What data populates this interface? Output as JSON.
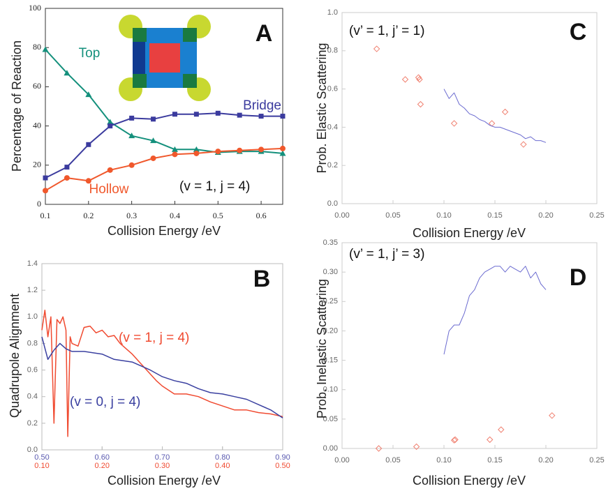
{
  "chart_data": [
    {
      "type": "line",
      "panel": "A",
      "xlabel": "Collision Energy /eV",
      "ylabel": "Percentage of Reaction",
      "annotations": [
        "(v = 1, j = 4)"
      ],
      "xlim": [
        0.1,
        0.65
      ],
      "xticks": [
        0.1,
        0.2,
        0.3,
        0.4,
        0.5,
        0.6
      ],
      "ylim": [
        0,
        100
      ],
      "yticks": [
        0,
        20,
        40,
        60,
        80,
        100
      ],
      "x": [
        0.1,
        0.15,
        0.2,
        0.25,
        0.3,
        0.35,
        0.4,
        0.45,
        0.5,
        0.55,
        0.6,
        0.65
      ],
      "series": [
        {
          "name": "Top",
          "color": "#14907c",
          "marker": "triangle",
          "values": [
            79,
            67,
            56,
            42,
            35,
            32.5,
            28,
            28,
            26.5,
            27,
            27,
            26
          ]
        },
        {
          "name": "Bridge",
          "color": "#3b3b9e",
          "marker": "square",
          "values": [
            13.5,
            19,
            30.5,
            40,
            44,
            43.5,
            46,
            46,
            46.5,
            45.5,
            45,
            45
          ]
        },
        {
          "name": "Hollow",
          "color": "#f0582c",
          "marker": "circle",
          "values": [
            7,
            13.5,
            12,
            17.5,
            20,
            23.5,
            25.5,
            26,
            27,
            27.5,
            28,
            28.5
          ]
        }
      ]
    },
    {
      "type": "scatter",
      "panel": "C",
      "xlabel": "Collision Energy /eV",
      "ylabel": "Prob. Elastic Scattering",
      "annotations": [
        "(v’ = 1, j’ = 1)"
      ],
      "xlim": [
        0,
        0.25
      ],
      "xticks": [
        {
          "value": 0,
          "label": "0.00"
        },
        0.05,
        {
          "value": 0.1,
          "label": "0.10"
        },
        0.15,
        {
          "value": 0.2,
          "label": "0.20"
        },
        0.25
      ],
      "ylim": [
        0,
        1
      ],
      "yticks": [
        {
          "value": 0,
          "label": "0.0"
        },
        0.2,
        0.4,
        0.6,
        0.8,
        {
          "value": 1,
          "label": "1.0"
        }
      ],
      "series": [
        {
          "color": "#f08070",
          "mode": "markers",
          "marker": "diamond",
          "x": [
            0.034,
            0.062,
            0.075,
            0.076,
            0.077,
            0.11,
            0.147,
            0.16,
            0.178
          ],
          "values": [
            0.81,
            0.65,
            0.66,
            0.65,
            0.52,
            0.42,
            0.42,
            0.48,
            0.31
          ]
        },
        {
          "color": "#6b6bd0",
          "mode": "lines",
          "x": [
            0.1,
            0.105,
            0.11,
            0.115,
            0.12,
            0.125,
            0.13,
            0.135,
            0.14,
            0.145,
            0.15,
            0.155,
            0.16,
            0.165,
            0.17,
            0.175,
            0.18,
            0.185,
            0.19,
            0.195,
            0.2
          ],
          "values": [
            0.6,
            0.55,
            0.58,
            0.52,
            0.5,
            0.47,
            0.46,
            0.44,
            0.43,
            0.41,
            0.4,
            0.4,
            0.39,
            0.38,
            0.37,
            0.36,
            0.34,
            0.35,
            0.33,
            0.33,
            0.32
          ]
        }
      ]
    },
    {
      "type": "line",
      "panel": "B",
      "xlabel": "Collision Energy /eV",
      "ylabel": "Quadrupole Alignment",
      "annotations": [],
      "xlim": [
        0.5,
        0.9
      ],
      "xticks": [
        {
          "value": 0.5,
          "label": "0.50"
        },
        {
          "value": 0.6,
          "label": "0.60"
        },
        {
          "value": 0.7,
          "label": "0.70"
        },
        {
          "value": 0.8,
          "label": "0.80"
        },
        {
          "value": 0.9,
          "label": "0.90"
        }
      ],
      "x_color": "#5a5ab0",
      "x2lim": [
        0.1,
        0.5
      ],
      "x2ticks": [
        {
          "value": 0.1,
          "label": "0.10"
        },
        {
          "value": 0.2,
          "label": "0.20"
        },
        {
          "value": 0.3,
          "label": "0.30"
        },
        {
          "value": 0.4,
          "label": "0.40"
        },
        {
          "value": 0.5,
          "label": "0.50"
        }
      ],
      "x2_color": "#f04a30",
      "ylim": [
        0,
        1.4
      ],
      "yticks": [
        {
          "value": 0,
          "label": "0.0"
        },
        0.2,
        0.4,
        0.6,
        0.8,
        {
          "value": 1,
          "label": "1.0"
        },
        1.2,
        1.4
      ],
      "series": [
        {
          "name": "(v = 1, j = 4)",
          "color": "#f04a30",
          "axis": "x2",
          "x": [
            0.1,
            0.105,
            0.11,
            0.115,
            0.12,
            0.125,
            0.13,
            0.135,
            0.14,
            0.143,
            0.147,
            0.15,
            0.16,
            0.17,
            0.18,
            0.19,
            0.2,
            0.21,
            0.22,
            0.23,
            0.25,
            0.27,
            0.29,
            0.3,
            0.32,
            0.34,
            0.36,
            0.38,
            0.4,
            0.42,
            0.44,
            0.46,
            0.48,
            0.5
          ],
          "values": [
            0.9,
            1.05,
            0.85,
            1.0,
            0.2,
            0.98,
            0.95,
            1.0,
            0.9,
            0.1,
            0.85,
            0.8,
            0.78,
            0.92,
            0.93,
            0.88,
            0.9,
            0.85,
            0.86,
            0.8,
            0.72,
            0.62,
            0.52,
            0.48,
            0.42,
            0.42,
            0.4,
            0.36,
            0.33,
            0.3,
            0.3,
            0.28,
            0.27,
            0.25
          ]
        },
        {
          "name": "(v = 0, j = 4)",
          "color": "#3a40a0",
          "x": [
            0.5,
            0.51,
            0.52,
            0.53,
            0.54,
            0.55,
            0.57,
            0.6,
            0.62,
            0.65,
            0.68,
            0.7,
            0.72,
            0.74,
            0.76,
            0.78,
            0.8,
            0.82,
            0.84,
            0.86,
            0.88,
            0.9
          ],
          "values": [
            0.85,
            0.68,
            0.75,
            0.8,
            0.76,
            0.74,
            0.74,
            0.72,
            0.68,
            0.66,
            0.6,
            0.55,
            0.52,
            0.5,
            0.46,
            0.43,
            0.42,
            0.4,
            0.38,
            0.34,
            0.3,
            0.24
          ]
        }
      ]
    },
    {
      "type": "scatter",
      "panel": "D",
      "xlabel": "Collision Energy /eV",
      "ylabel": "Prob. Inelastic Scattering",
      "annotations": [
        "(v’ = 1, j’ = 3)"
      ],
      "xlim": [
        0,
        0.25
      ],
      "xticks": [
        {
          "value": 0,
          "label": "0.00"
        },
        0.05,
        {
          "value": 0.1,
          "label": "0.10"
        },
        0.15,
        {
          "value": 0.2,
          "label": "0.20"
        },
        0.25
      ],
      "ylim": [
        0,
        0.35
      ],
      "yticks": [
        {
          "value": 0,
          "label": "0.00"
        },
        0.05,
        {
          "value": 0.1,
          "label": "0.10"
        },
        0.15,
        {
          "value": 0.2,
          "label": "0.20"
        },
        0.25,
        {
          "value": 0.3,
          "label": "0.30"
        },
        0.35
      ],
      "series": [
        {
          "color": "#f08070",
          "mode": "markers",
          "marker": "diamond",
          "x": [
            0.036,
            0.073,
            0.11,
            0.111,
            0.145,
            0.156,
            0.206
          ],
          "values": [
            0,
            0.003,
            0.014,
            0.015,
            0.015,
            0.032,
            0.056
          ]
        },
        {
          "color": "#6b6bd0",
          "mode": "lines",
          "x": [
            0.1,
            0.105,
            0.11,
            0.115,
            0.12,
            0.125,
            0.13,
            0.135,
            0.14,
            0.145,
            0.15,
            0.155,
            0.16,
            0.165,
            0.17,
            0.175,
            0.18,
            0.185,
            0.19,
            0.195,
            0.2
          ],
          "values": [
            0.16,
            0.2,
            0.21,
            0.21,
            0.23,
            0.26,
            0.27,
            0.29,
            0.3,
            0.305,
            0.31,
            0.31,
            0.3,
            0.31,
            0.305,
            0.3,
            0.31,
            0.29,
            0.3,
            0.28,
            0.27
          ]
        }
      ]
    }
  ]
}
